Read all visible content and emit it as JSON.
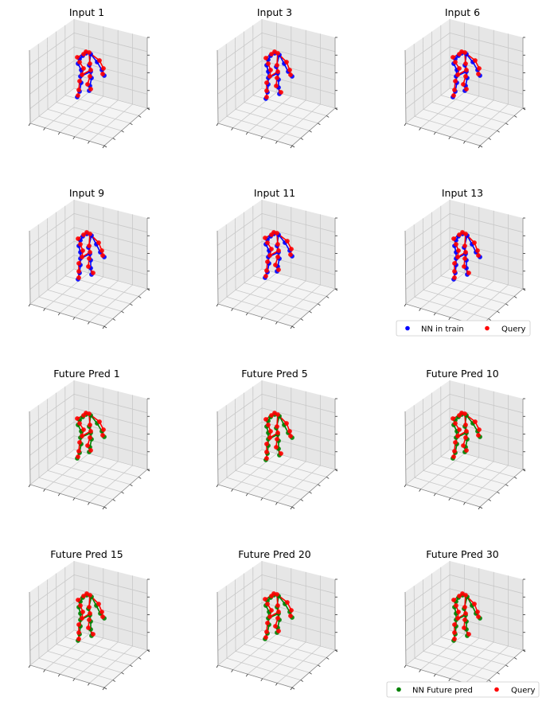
{
  "figure": {
    "colors": {
      "train": "#0000ff",
      "query": "#ff0000",
      "future": "#008000",
      "pane_light": "#f4f4f4",
      "pane_mid": "#ececec",
      "pane_dark": "#e6e6e6",
      "grid": "#c8c8c8"
    }
  },
  "chart_data": [
    {
      "type": "scatter",
      "projection": "3d",
      "title": "Input 1",
      "series": [
        "NN in train",
        "Query"
      ],
      "grid": true
    },
    {
      "type": "scatter",
      "projection": "3d",
      "title": "Input 3",
      "series": [
        "NN in train",
        "Query"
      ],
      "grid": true
    },
    {
      "type": "scatter",
      "projection": "3d",
      "title": "Input 6",
      "series": [
        "NN in train",
        "Query"
      ],
      "grid": true
    },
    {
      "type": "scatter",
      "projection": "3d",
      "title": "Input 9",
      "series": [
        "NN in train",
        "Query"
      ],
      "grid": true
    },
    {
      "type": "scatter",
      "projection": "3d",
      "title": "Input 11",
      "series": [
        "NN in train",
        "Query"
      ],
      "grid": true
    },
    {
      "type": "scatter",
      "projection": "3d",
      "title": "Input 13",
      "series": [
        "NN in train",
        "Query"
      ],
      "grid": true,
      "legend": {
        "placement": "bottom-right",
        "entries": [
          {
            "name": "NN in train",
            "color": "#0000ff"
          },
          {
            "name": "Query",
            "color": "#ff0000"
          }
        ]
      }
    },
    {
      "type": "scatter",
      "projection": "3d",
      "title": "Future Pred 1",
      "series": [
        "NN Future pred",
        "Query"
      ],
      "grid": true
    },
    {
      "type": "scatter",
      "projection": "3d",
      "title": "Future Pred 5",
      "series": [
        "NN Future pred",
        "Query"
      ],
      "grid": true
    },
    {
      "type": "scatter",
      "projection": "3d",
      "title": "Future Pred 10",
      "series": [
        "NN Future pred",
        "Query"
      ],
      "grid": true
    },
    {
      "type": "scatter",
      "projection": "3d",
      "title": "Future Pred 15",
      "series": [
        "NN Future pred",
        "Query"
      ],
      "grid": true
    },
    {
      "type": "scatter",
      "projection": "3d",
      "title": "Future Pred 20",
      "series": [
        "NN Future pred",
        "Query"
      ],
      "grid": true
    },
    {
      "type": "scatter",
      "projection": "3d",
      "title": "Future Pred 30",
      "series": [
        "NN Future pred",
        "Query"
      ],
      "grid": true,
      "legend": {
        "placement": "bottom-right",
        "entries": [
          {
            "name": "NN Future pred",
            "color": "#008000"
          },
          {
            "name": "Query",
            "color": "#ff0000"
          }
        ]
      }
    }
  ]
}
